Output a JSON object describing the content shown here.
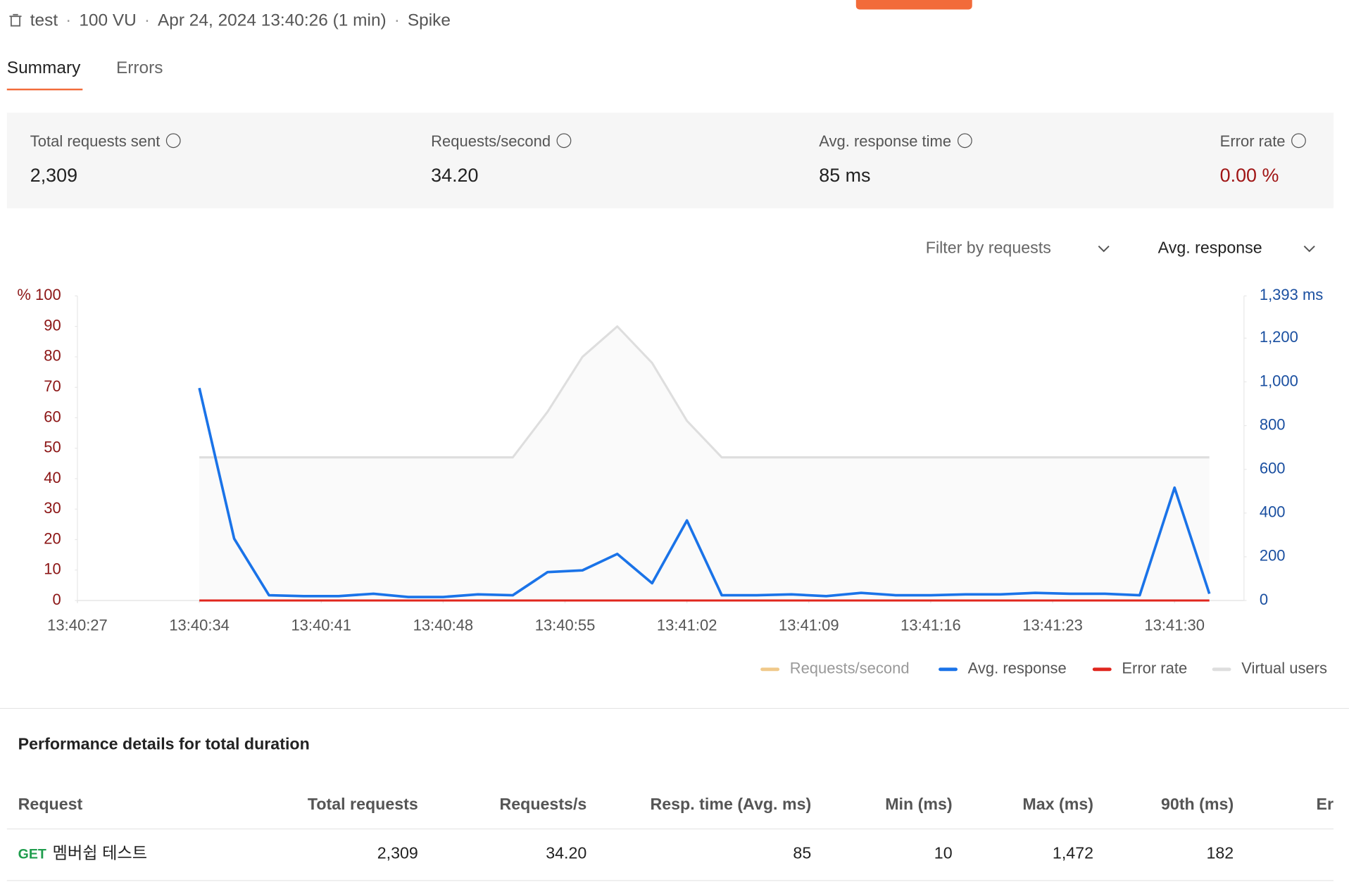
{
  "header": {
    "name": "test",
    "vus": "100 VU",
    "started": "Apr 24, 2024 13:40:26 (1 min)",
    "profile": "Spike"
  },
  "tabs": [
    "Summary",
    "Errors"
  ],
  "stats": [
    {
      "label": "Total requests sent",
      "value": "2,309"
    },
    {
      "label": "Requests/second",
      "value": "34.20"
    },
    {
      "label": "Avg. response time",
      "value": "85 ms"
    },
    {
      "label": "Error rate",
      "value": "0.00 %"
    }
  ],
  "filters": [
    "Filter by requests",
    "Avg. response"
  ],
  "chart_data": {
    "type": "line",
    "x": [
      "13:40:34",
      "13:40:36",
      "13:40:38",
      "13:40:40",
      "13:40:42",
      "13:40:44",
      "13:40:46",
      "13:40:48",
      "13:40:50",
      "13:40:52",
      "13:40:54",
      "13:40:56",
      "13:40:58",
      "13:41:00",
      "13:41:02",
      "13:41:04",
      "13:41:06",
      "13:41:08",
      "13:41:10",
      "13:41:12",
      "13:41:14",
      "13:41:16",
      "13:41:18",
      "13:41:20",
      "13:41:22",
      "13:41:24",
      "13:41:26",
      "13:41:28",
      "13:41:30",
      "13:41:32"
    ],
    "xlim": [
      "13:40:27",
      "13:41:33"
    ],
    "xticks": [
      "13:40:27",
      "13:40:34",
      "13:40:41",
      "13:40:48",
      "13:40:55",
      "13:41:02",
      "13:41:09",
      "13:41:16",
      "13:41:23",
      "13:41:30"
    ],
    "ylim": [
      0,
      100
    ],
    "yticks": [
      0,
      10,
      20,
      30,
      40,
      50,
      60,
      70,
      80,
      90,
      {
        "value": 100,
        "label": "% 100"
      }
    ],
    "y2lim": [
      0,
      1393
    ],
    "y2ticks": [
      0,
      200,
      400,
      600,
      800,
      {
        "value": 1000,
        "label": "1,000"
      },
      {
        "value": 1200,
        "label": "1,200"
      },
      {
        "value": 1393,
        "label": "1,393 ms"
      }
    ],
    "series": [
      {
        "name": "Requests/second",
        "color": "#f0c98a",
        "visible": false
      },
      {
        "name": "Avg. response",
        "color": "#1a73e8",
        "axis": "y2",
        "values": [
          972,
          283,
          24,
          20,
          20,
          31,
          16,
          16,
          28,
          24,
          130,
          138,
          213,
          79,
          366,
          24,
          24,
          28,
          20,
          35,
          24,
          24,
          28,
          28,
          35,
          31,
          31,
          24,
          516,
          31
        ]
      },
      {
        "name": "Error rate",
        "color": "#e0261e",
        "values": [
          0,
          0,
          0,
          0,
          0,
          0,
          0,
          0,
          0,
          0,
          0,
          0,
          0,
          0,
          0,
          0,
          0,
          0,
          0,
          0,
          0,
          0,
          0,
          0,
          0,
          0,
          0,
          0,
          0,
          0
        ]
      },
      {
        "name": "Virtual users",
        "color": "#dedede",
        "area": true,
        "values": [
          47,
          47,
          47,
          47,
          47,
          47,
          47,
          47,
          47,
          47,
          62,
          80,
          90,
          78,
          59,
          47,
          47,
          47,
          47,
          47,
          47,
          47,
          47,
          47,
          47,
          47,
          47,
          47,
          47,
          47
        ]
      }
    ]
  },
  "table": {
    "title": "Performance details for total duration",
    "columns": [
      "Request",
      "Total requests",
      "Requests/s",
      "Resp. time (Avg. ms)",
      "Min (ms)",
      "Max (ms)",
      "90th (ms)",
      "Er"
    ],
    "rows": [
      [
        "GET",
        "멤버쉽 테스트",
        "2,309",
        "34.20",
        "85",
        "10",
        "1,472",
        "182"
      ]
    ]
  }
}
